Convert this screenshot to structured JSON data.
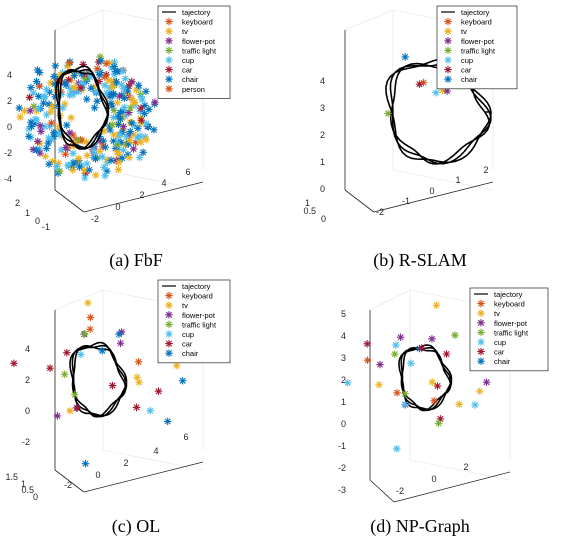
{
  "colors": {
    "keyboard": "#d95319",
    "tv": "#edb120",
    "flower-pot": "#7e2f8e",
    "traffic light": "#77ac30",
    "cup": "#4dbeee",
    "car": "#a2142f",
    "chair": "#0072bd",
    "person": "#d95319",
    "trajectory": "#000000"
  },
  "chart_data": [
    {
      "panel": "a",
      "type": "scatter",
      "caption": "(a) FbF",
      "legend": [
        "tajectory",
        "keyboard",
        "tv",
        "flower-pot",
        "traffic light",
        "cup",
        "car",
        "chair",
        "person"
      ],
      "z_ticks": [
        "4",
        "2",
        "0",
        "-2",
        "-4"
      ],
      "y_ticks": [
        "2",
        "1",
        "0",
        "-1"
      ],
      "x_ticks": [
        "-2",
        "0",
        "2",
        "4",
        "6"
      ],
      "points": [
        {
          "c": "chair",
          "x": 1,
          "y": 0.5,
          "z": 2.0
        },
        {
          "c": "chair",
          "x": 0.5,
          "y": 0.3,
          "z": 2.5
        },
        {
          "c": "cup",
          "x": 2.5,
          "y": 0.2,
          "z": 1.5
        },
        {
          "c": "tv",
          "x": -1,
          "y": 0.5,
          "z": 1.5
        },
        {
          "c": "chair",
          "x": 4,
          "y": 0.5,
          "z": 0.5
        },
        {
          "c": "cup",
          "x": 5,
          "y": 0.4,
          "z": -1
        },
        {
          "c": "flower-pot",
          "x": 6,
          "y": 0.5,
          "z": 2.5
        },
        {
          "c": "traffic light",
          "x": -2,
          "y": 0.3,
          "z": -1.5
        },
        {
          "c": "chair",
          "x": 3,
          "y": 0.6,
          "z": 3.5
        },
        {
          "c": "car",
          "x": 0,
          "y": 0.5,
          "z": 3.0
        }
      ]
    },
    {
      "panel": "b",
      "type": "scatter",
      "caption": "(b) R-SLAM",
      "legend": [
        "tajectory",
        "keyboard",
        "tv",
        "flower-pot",
        "traffic light",
        "cup",
        "car",
        "chair"
      ],
      "z_ticks": [
        "4",
        "3",
        "2",
        "1",
        "0"
      ],
      "y_ticks": [
        "1",
        "0.5",
        "0"
      ],
      "x_ticks": [
        "-2",
        "-1",
        "0",
        "1",
        "2"
      ],
      "points": [
        {
          "c": "chair",
          "x": -1.5,
          "y": 0.5,
          "z": 4.6
        },
        {
          "c": "keyboard",
          "x": -0.5,
          "y": 0.5,
          "z": 3.4
        },
        {
          "c": "car",
          "x": -0.7,
          "y": 0.5,
          "z": 3.3
        },
        {
          "c": "cup",
          "x": -0.2,
          "y": 0.5,
          "z": 3.0
        },
        {
          "c": "tv",
          "x": 0.2,
          "y": 0.5,
          "z": 2.9
        },
        {
          "c": "flower-pot",
          "x": 0.4,
          "y": 0.5,
          "z": 2.9
        },
        {
          "c": "traffic light",
          "x": -2.0,
          "y": 0.5,
          "z": 2.0
        }
      ]
    },
    {
      "panel": "c",
      "type": "scatter",
      "caption": "(c) OL",
      "legend": [
        "tajectory",
        "keyboard",
        "tv",
        "flower-pot",
        "traffic light",
        "cup",
        "car",
        "chair"
      ],
      "z_ticks": [
        "4",
        "2",
        "0",
        "-2"
      ],
      "y_ticks": [
        "1.5",
        "1",
        "0.5",
        "0"
      ],
      "x_ticks": [
        "-2",
        "0",
        "2",
        "4",
        "6"
      ],
      "points": [
        {
          "c": "flower-pot",
          "x": 2,
          "y": 0.5,
          "z": 5.0
        },
        {
          "c": "chair",
          "x": 0.5,
          "y": 0.5,
          "z": 4.0
        },
        {
          "c": "cup",
          "x": -1.5,
          "y": 0.5,
          "z": 3.5
        },
        {
          "c": "tv",
          "x": 3,
          "y": 0.5,
          "z": 2.0
        },
        {
          "c": "traffic light",
          "x": -2,
          "y": 0.5,
          "z": 1.0
        },
        {
          "c": "chair",
          "x": 5.5,
          "y": 0.5,
          "z": -0.5
        },
        {
          "c": "car",
          "x": 1,
          "y": 0.5,
          "z": 1.5
        },
        {
          "c": "cup",
          "x": 4,
          "y": 0.5,
          "z": 0.0
        }
      ]
    },
    {
      "panel": "d",
      "type": "scatter",
      "caption": "(d) NP-Graph",
      "legend": [
        "tajectory",
        "keyboard",
        "tv",
        "flower-pot",
        "traffic light",
        "cup",
        "car",
        "chair"
      ],
      "z_ticks": [
        "5",
        "4",
        "3",
        "2",
        "1",
        "0",
        "-1",
        "-2",
        "-3"
      ],
      "y_ticks": [],
      "x_ticks": [
        "-2",
        "0",
        "2"
      ],
      "points": [
        {
          "c": "flower-pot",
          "x": 0.5,
          "y": 0.5,
          "z": 5.0
        },
        {
          "c": "chair",
          "x": -0.5,
          "y": 0.5,
          "z": 4.0
        },
        {
          "c": "cup",
          "x": -1,
          "y": 0.5,
          "z": 3.0
        },
        {
          "c": "tv",
          "x": 0.5,
          "y": 0.5,
          "z": 1.5
        },
        {
          "c": "keyboard",
          "x": 0.8,
          "y": 0.5,
          "z": 0.5
        },
        {
          "c": "traffic light",
          "x": -1.5,
          "y": 0.5,
          "z": 1.0
        },
        {
          "c": "car",
          "x": 1.0,
          "y": 0.5,
          "z": 1.2
        },
        {
          "c": "cup",
          "x": -2.5,
          "y": 0.5,
          "z": -3.0
        }
      ]
    }
  ]
}
